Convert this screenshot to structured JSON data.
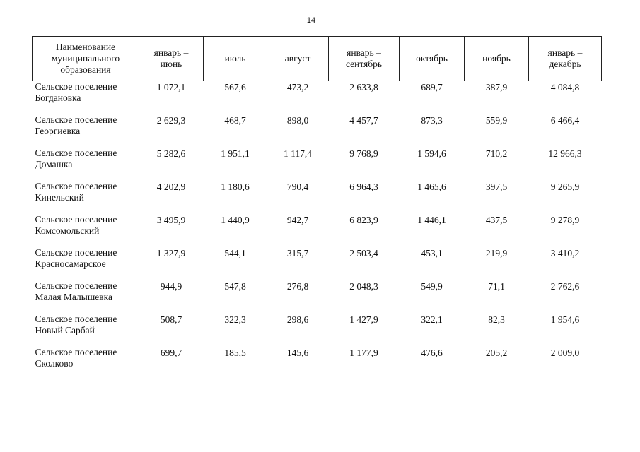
{
  "page_number": "14",
  "table": {
    "headers": [
      [
        "Наименование",
        "муниципального",
        "образования"
      ],
      [
        "январь –",
        "июнь"
      ],
      [
        "июль"
      ],
      [
        "август"
      ],
      [
        "январь –",
        "сентябрь"
      ],
      [
        "октябрь"
      ],
      [
        "ноябрь"
      ],
      [
        "январь –",
        "декабрь"
      ]
    ],
    "rows": [
      {
        "name": [
          "Сельское поселение",
          "Богдановка"
        ],
        "values": [
          "1 072,1",
          "567,6",
          "473,2",
          "2 633,8",
          "689,7",
          "387,9",
          "4 084,8"
        ]
      },
      {
        "name": [
          "Сельское поселение",
          "Георгиевка"
        ],
        "values": [
          "2 629,3",
          "468,7",
          "898,0",
          "4 457,7",
          "873,3",
          "559,9",
          "6 466,4"
        ]
      },
      {
        "name": [
          "Сельское поселение",
          "Домашка"
        ],
        "values": [
          "5 282,6",
          "1 951,1",
          "1 117,4",
          "9 768,9",
          "1 594,6",
          "710,2",
          "12 966,3"
        ]
      },
      {
        "name": [
          "Сельское поселение",
          "Кинельский"
        ],
        "values": [
          "4 202,9",
          "1 180,6",
          "790,4",
          "6 964,3",
          "1 465,6",
          "397,5",
          "9 265,9"
        ]
      },
      {
        "name": [
          "Сельское поселение",
          "Комсомольский"
        ],
        "values": [
          "3 495,9",
          "1 440,9",
          "942,7",
          "6 823,9",
          "1 446,1",
          "437,5",
          "9 278,9"
        ]
      },
      {
        "name": [
          "Сельское поселение",
          "Красносамарское"
        ],
        "values": [
          "1 327,9",
          "544,1",
          "315,7",
          "2 503,4",
          "453,1",
          "219,9",
          "3 410,2"
        ]
      },
      {
        "name": [
          "Сельское поселение",
          "Малая Малышевка"
        ],
        "values": [
          "944,9",
          "547,8",
          "276,8",
          "2 048,3",
          "549,9",
          "71,1",
          "2 762,6"
        ]
      },
      {
        "name": [
          "Сельское поселение",
          "Новый Сарбай"
        ],
        "values": [
          "508,7",
          "322,3",
          "298,6",
          "1 427,9",
          "322,1",
          "82,3",
          "1 954,6"
        ]
      },
      {
        "name": [
          "Сельское поселение",
          "Сколково"
        ],
        "values": [
          "699,7",
          "185,5",
          "145,6",
          "1 177,9",
          "476,6",
          "205,2",
          "2 009,0"
        ]
      }
    ]
  }
}
